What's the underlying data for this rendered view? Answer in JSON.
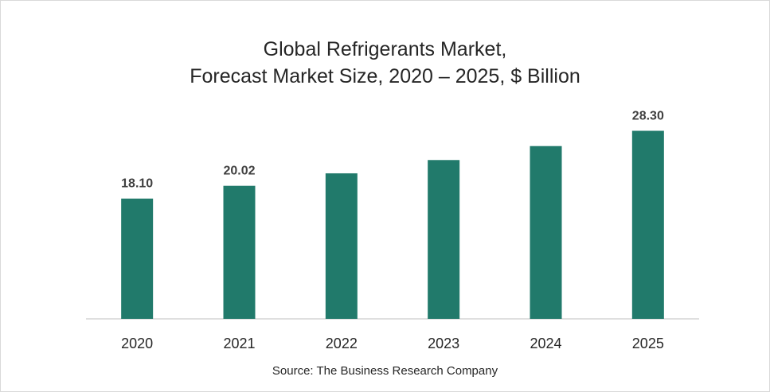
{
  "chart_data": {
    "type": "bar",
    "title_lines": [
      "Global Refrigerants Market,",
      "Forecast Market Size, 2020 – 2025, $ Billion"
    ],
    "categories": [
      "2020",
      "2021",
      "2022",
      "2023",
      "2024",
      "2025"
    ],
    "values": [
      18.1,
      20.02,
      21.9,
      23.9,
      26.0,
      28.3
    ],
    "value_labels": [
      "18.10",
      "20.02",
      "",
      "",
      "",
      "28.30"
    ],
    "ylim": [
      0,
      32
    ],
    "xlabel": "",
    "ylabel": "",
    "grid": false,
    "legend": "none",
    "bar_color": "#217a6b",
    "source": "Source: The Business Research Company"
  }
}
